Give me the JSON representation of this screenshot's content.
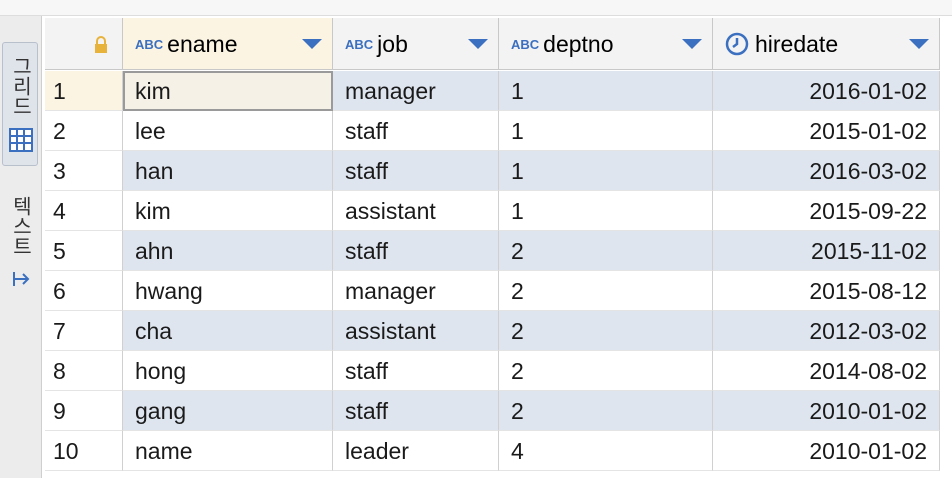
{
  "sidebar": {
    "tabs": [
      "그리드",
      "텍스트"
    ]
  },
  "table": {
    "columns": [
      {
        "name": "ename",
        "type_label": "ABC"
      },
      {
        "name": "job",
        "type_label": "ABC"
      },
      {
        "name": "deptno",
        "type_label": "ABC"
      },
      {
        "name": "hiredate"
      }
    ],
    "rows": [
      {
        "num": 1,
        "cells": [
          "kim",
          "manager",
          1,
          "2016-01-02"
        ]
      },
      {
        "num": 2,
        "cells": [
          "lee",
          "staff",
          1,
          "2015-01-02"
        ]
      },
      {
        "num": 3,
        "cells": [
          "han",
          "staff",
          1,
          "2016-03-02"
        ]
      },
      {
        "num": 4,
        "cells": [
          "kim",
          "assistant",
          1,
          "2015-09-22"
        ]
      },
      {
        "num": 5,
        "cells": [
          "ahn",
          "staff",
          2,
          "2015-11-02"
        ]
      },
      {
        "num": 6,
        "cells": [
          "hwang",
          "manager",
          2,
          "2015-08-12"
        ]
      },
      {
        "num": 7,
        "cells": [
          "cha",
          "assistant",
          2,
          "2012-03-02"
        ]
      },
      {
        "num": 8,
        "cells": [
          "hong",
          "staff",
          2,
          "2014-08-02"
        ]
      },
      {
        "num": 9,
        "cells": [
          "gang",
          "staff",
          2,
          "2010-01-02"
        ]
      },
      {
        "num": 10,
        "cells": [
          "name",
          "leader",
          4,
          "2010-01-02"
        ]
      }
    ]
  }
}
